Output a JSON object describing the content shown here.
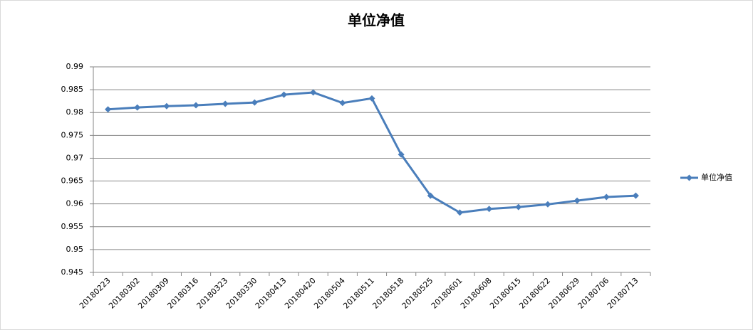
{
  "chart_data": {
    "type": "line",
    "title": "单位净值",
    "categories": [
      "20180223",
      "20180302",
      "20180309",
      "20180316",
      "20180323",
      "20180330",
      "20180413",
      "20180420",
      "20180504",
      "20180511",
      "20180518",
      "20180525",
      "20180601",
      "20180608",
      "20180615",
      "20180622",
      "20180629",
      "20180706",
      "20180713"
    ],
    "series": [
      {
        "name": "单位净值",
        "color": "#4a7ebb",
        "values": [
          0.9807,
          0.9811,
          0.9814,
          0.9816,
          0.9819,
          0.9822,
          0.9839,
          0.9844,
          0.9821,
          0.9831,
          0.9708,
          0.9618,
          0.9581,
          0.9589,
          0.9593,
          0.9599,
          0.9607,
          0.9615,
          0.9618
        ]
      }
    ],
    "ylim": [
      0.945,
      0.99
    ],
    "yticks": [
      0.945,
      0.95,
      0.955,
      0.96,
      0.965,
      0.97,
      0.975,
      0.98,
      0.985,
      0.99
    ],
    "grid": true,
    "legend": "right"
  }
}
